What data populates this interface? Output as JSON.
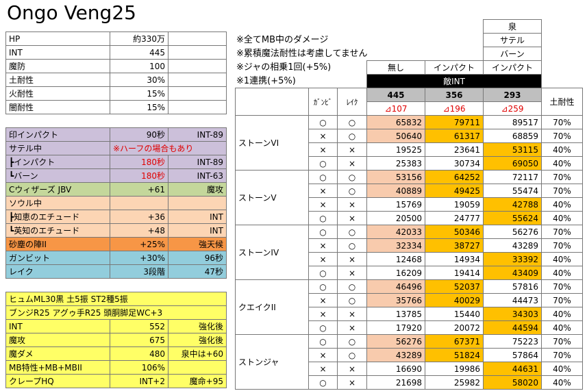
{
  "title": "Ongo Veng25",
  "stats_table": {
    "rows": [
      [
        "HP",
        "約330万"
      ],
      [
        "INT",
        "445"
      ],
      [
        "魔防",
        "100"
      ],
      [
        "土耐性",
        "30%"
      ],
      [
        "火耐性",
        "15%"
      ],
      [
        "闇耐性",
        "15%"
      ]
    ]
  },
  "buff_table": {
    "rows": [
      [
        "印インパクト",
        "90秒",
        "INT-89"
      ],
      [
        "サテル中",
        "※ハーフの場合もあり"
      ],
      [
        "┣インパクト",
        "180秒",
        "INT-89"
      ],
      [
        "┗バーン",
        "180秒",
        "INT-63"
      ],
      [
        "Cウィザーズ JBV",
        "+61",
        "魔攻"
      ],
      [
        "ソウル中"
      ],
      [
        "┣知恵のエチュード",
        "+36",
        "INT"
      ],
      [
        "┗英知のエチュード",
        "+48",
        "INT"
      ],
      [
        "砂塵の陣II",
        "+25%",
        "強天候"
      ],
      [
        "ガンビット",
        "+30%",
        "96秒"
      ],
      [
        "レイク",
        "3段階",
        "47秒"
      ]
    ]
  },
  "gear_table": {
    "lines": [
      "ヒュムML30黒 土5振 ST2種5振",
      "ブンジR25 アグゥ手R25 頭胴脚足WC+3"
    ],
    "rows": [
      [
        "INT",
        "552",
        "強化後"
      ],
      [
        "魔攻",
        "675",
        "強化後"
      ],
      [
        "魔ダメ",
        "480",
        "泉中は+60"
      ],
      [
        "MB特性+MB+MBII",
        "106%"
      ],
      [
        "クレープHQ",
        "INT+2",
        "魔命+95"
      ]
    ]
  },
  "notes": [
    "※全てMB中のダメージ",
    "※累積魔法耐性は考慮してません",
    "※ジャの相乗1回(+5%)",
    "※1連携(+5%)"
  ],
  "damage_table": {
    "header": {
      "top": [
        "泉",
        "サテル",
        "バーン"
      ],
      "columns": [
        "無し",
        "インパクト",
        "インパクト"
      ],
      "band": "敵INT",
      "int_values": [
        445,
        356,
        293
      ],
      "int_deltas": [
        "⊿107",
        "⊿196",
        "⊿259"
      ],
      "gambit": "ｶﾞﾝﾋﾞ",
      "rake": "ﾚｲｸ",
      "earth_res": "土耐性"
    },
    "groups": [
      {
        "spell": "ストーンVI",
        "rows": [
          [
            "○",
            "○",
            65832,
            79711,
            89517,
            "70%"
          ],
          [
            "×",
            "○",
            50640,
            61317,
            68859,
            "70%"
          ],
          [
            "×",
            "×",
            19525,
            23641,
            53115,
            "40%"
          ],
          [
            "○",
            "×",
            25383,
            30734,
            69050,
            "40%"
          ]
        ]
      },
      {
        "spell": "ストーンV",
        "rows": [
          [
            "○",
            "○",
            53156,
            64252,
            72117,
            "70%"
          ],
          [
            "×",
            "○",
            40889,
            49425,
            55474,
            "70%"
          ],
          [
            "×",
            "×",
            15769,
            19059,
            42788,
            "40%"
          ],
          [
            "○",
            "×",
            20500,
            24777,
            55624,
            "40%"
          ]
        ]
      },
      {
        "spell": "ストーンIV",
        "rows": [
          [
            "○",
            "○",
            42033,
            50346,
            56276,
            "70%"
          ],
          [
            "×",
            "○",
            32334,
            38727,
            43289,
            "70%"
          ],
          [
            "×",
            "×",
            12468,
            14934,
            33392,
            "40%"
          ],
          [
            "○",
            "×",
            16209,
            19414,
            43409,
            "40%"
          ]
        ]
      },
      {
        "spell": "クエイクII",
        "rows": [
          [
            "○",
            "○",
            46496,
            52037,
            57816,
            "70%"
          ],
          [
            "×",
            "○",
            35766,
            40029,
            44473,
            "70%"
          ],
          [
            "×",
            "×",
            13785,
            15440,
            34303,
            "40%"
          ],
          [
            "○",
            "×",
            17920,
            20072,
            44594,
            "40%"
          ]
        ]
      },
      {
        "spell": "ストンジャ",
        "rows": [
          [
            "○",
            "○",
            56276,
            67371,
            75223,
            "70%"
          ],
          [
            "×",
            "○",
            43289,
            51824,
            57864,
            "70%"
          ],
          [
            "×",
            "×",
            16690,
            19986,
            44631,
            "40%"
          ],
          [
            "○",
            "×",
            21698,
            25982,
            58020,
            "40%"
          ]
        ]
      }
    ]
  }
}
